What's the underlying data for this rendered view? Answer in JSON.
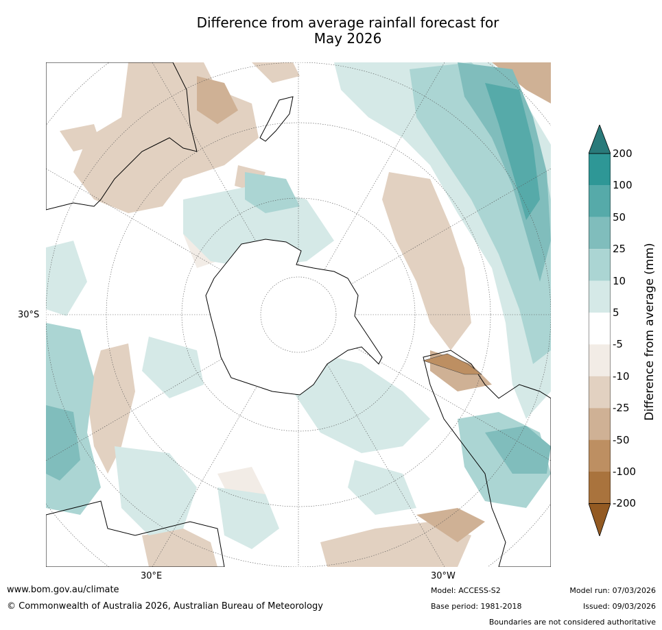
{
  "title_line1": "Difference from average rainfall forecast for",
  "title_line2": "May 2026",
  "map": {
    "projection": "south-polar",
    "lat_label": "30°S",
    "lon_label_left": "30°E",
    "lon_label_right": "30°W",
    "grid": true
  },
  "colorbar": {
    "label": "Difference from average (mm)",
    "ticks": [
      "200",
      "100",
      "50",
      "25",
      "10",
      "5",
      "-5",
      "-10",
      "-25",
      "-50",
      "-100",
      "-200"
    ],
    "colors": [
      "#2a7a7a",
      "#2e9796",
      "#56aaa9",
      "#80bdbc",
      "#abd5d3",
      "#d5e9e7",
      "#ffffff",
      "#f2ece6",
      "#e2d1c1",
      "#cfb195",
      "#bd8f62",
      "#a9733d",
      "#935a22"
    ]
  },
  "footer": {
    "website": "www.bom.gov.au/climate",
    "copyright": "© Commonwealth of Australia 2026, Australian Bureau of Meteorology",
    "model": "Model: ACCESS-S2",
    "base_period": "Base period: 1981-2018",
    "model_run": "Model run: 07/03/2026",
    "issued": "Issued: 09/03/2026",
    "boundaries": "Boundaries are not considered authoritative"
  }
}
